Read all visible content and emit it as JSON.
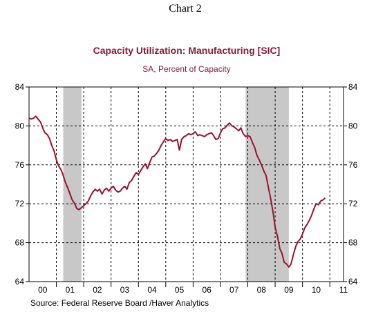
{
  "chart_number": "Chart 2",
  "source": "Source:  Federal Reserve Board /Haver Analytics",
  "colors": {
    "line": "#9b1030",
    "recession": "#c8c8c8",
    "title": "#8b1a3a"
  },
  "chart_data": {
    "type": "line",
    "title": "Capacity Utilization: Manufacturing [SIC]",
    "subtitle": "SA, Percent of Capacity",
    "xlabel": "",
    "ylabel": "",
    "xlim": [
      2000.0,
      2011.5
    ],
    "ylim": [
      64,
      84
    ],
    "y_ticks": [
      64,
      68,
      72,
      76,
      80,
      84
    ],
    "x_tick_labels": [
      {
        "label": "00",
        "x": 2000.5
      },
      {
        "label": "01",
        "x": 2001.5
      },
      {
        "label": "02",
        "x": 2002.5
      },
      {
        "label": "03",
        "x": 2003.5
      },
      {
        "label": "04",
        "x": 2004.5
      },
      {
        "label": "05",
        "x": 2005.5
      },
      {
        "label": "06",
        "x": 2006.5
      },
      {
        "label": "07",
        "x": 2007.5
      },
      {
        "label": "08",
        "x": 2008.5
      },
      {
        "label": "09",
        "x": 2009.5
      },
      {
        "label": "10",
        "x": 2010.5
      },
      {
        "label": "11",
        "x": 2011.5
      }
    ],
    "grid": "dashed, yearly vertical lines and horizontal at y ticks",
    "shaded_regions": [
      {
        "name": "recession",
        "x0": 2001.25,
        "x1": 2001.92
      },
      {
        "name": "recession",
        "x0": 2007.92,
        "x1": 2009.5
      }
    ],
    "series": [
      {
        "x": [
          2000.0,
          2000.08,
          2000.17,
          2000.25,
          2000.33,
          2000.42,
          2000.5,
          2000.58,
          2000.67,
          2000.75,
          2000.83,
          2000.92,
          2001.0,
          2001.08,
          2001.17,
          2001.25,
          2001.33,
          2001.42,
          2001.5,
          2001.58,
          2001.67,
          2001.75,
          2001.83,
          2001.92,
          2002.0,
          2002.08,
          2002.17,
          2002.25,
          2002.33,
          2002.42,
          2002.5,
          2002.58,
          2002.67,
          2002.75,
          2002.83,
          2002.92,
          2003.0,
          2003.08,
          2003.17,
          2003.25,
          2003.33,
          2003.42,
          2003.5,
          2003.58,
          2003.67,
          2003.75,
          2003.83,
          2003.92,
          2004.0,
          2004.08,
          2004.17,
          2004.25,
          2004.33,
          2004.42,
          2004.5,
          2004.58,
          2004.67,
          2004.75,
          2004.83,
          2004.92,
          2005.0,
          2005.08,
          2005.17,
          2005.25,
          2005.33,
          2005.42,
          2005.5,
          2005.58,
          2005.67,
          2005.75,
          2005.83,
          2005.92,
          2006.0,
          2006.08,
          2006.17,
          2006.25,
          2006.33,
          2006.42,
          2006.5,
          2006.58,
          2006.67,
          2006.75,
          2006.83,
          2006.92,
          2007.0,
          2007.08,
          2007.17,
          2007.25,
          2007.33,
          2007.42,
          2007.5,
          2007.58,
          2007.67,
          2007.75,
          2007.83,
          2007.92,
          2008.0,
          2008.08,
          2008.17,
          2008.25,
          2008.33,
          2008.42,
          2008.5,
          2008.58,
          2008.67,
          2008.75,
          2008.83,
          2008.92,
          2009.0,
          2009.08,
          2009.17,
          2009.25,
          2009.33,
          2009.42,
          2009.5,
          2009.58,
          2009.67,
          2009.75,
          2009.83,
          2009.92,
          2010.0,
          2010.08,
          2010.17,
          2010.25,
          2010.33,
          2010.42,
          2010.5,
          2010.58,
          2010.67,
          2010.75,
          2010.83
        ],
        "values": [
          80.8,
          80.7,
          80.8,
          81.0,
          80.7,
          80.4,
          79.8,
          79.3,
          79.1,
          78.7,
          78.0,
          77.4,
          76.5,
          75.9,
          75.5,
          74.9,
          74.2,
          73.6,
          73.0,
          72.4,
          72.0,
          71.5,
          71.4,
          71.6,
          71.8,
          72.0,
          72.3,
          72.8,
          73.2,
          73.5,
          73.3,
          73.5,
          73.0,
          73.4,
          73.6,
          73.3,
          73.6,
          73.8,
          73.4,
          73.2,
          73.3,
          73.6,
          73.8,
          73.5,
          74.2,
          74.4,
          74.8,
          75.2,
          75.0,
          75.4,
          75.8,
          76.1,
          75.6,
          76.3,
          76.8,
          76.9,
          77.2,
          77.5,
          78.0,
          78.4,
          78.7,
          78.5,
          78.6,
          78.4,
          78.5,
          78.6,
          77.5,
          78.6,
          78.9,
          79.0,
          79.2,
          79.1,
          79.2,
          79.4,
          79.0,
          79.1,
          79.0,
          78.9,
          79.1,
          79.2,
          79.3,
          79.0,
          78.6,
          78.7,
          79.3,
          79.7,
          79.8,
          80.1,
          80.3,
          80.0,
          79.9,
          79.7,
          79.5,
          79.8,
          79.2,
          78.9,
          79.0,
          78.9,
          78.3,
          77.8,
          77.0,
          76.5,
          76.0,
          75.4,
          74.9,
          73.7,
          72.6,
          71.2,
          69.6,
          68.7,
          67.4,
          66.9,
          66.0,
          65.8,
          65.5,
          65.8,
          66.8,
          67.6,
          68.1,
          68.4,
          68.9,
          69.5,
          69.9,
          70.3,
          70.8,
          71.5,
          72.0,
          71.9,
          72.3,
          72.4,
          72.6
        ]
      }
    ]
  }
}
